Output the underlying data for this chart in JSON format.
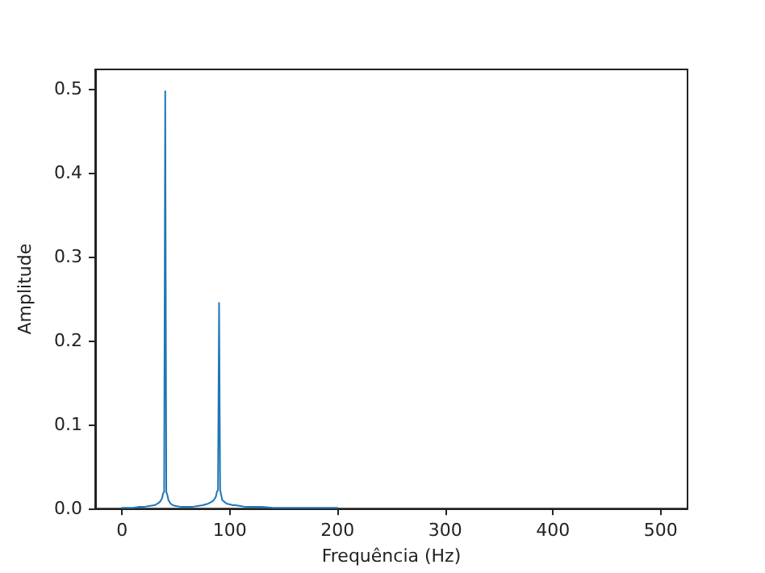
{
  "chart_data": {
    "type": "line",
    "xlabel": "Frequência (Hz)",
    "ylabel": "Amplitude",
    "x": [
      0,
      5,
      10,
      15,
      20,
      25,
      30,
      33,
      35,
      37,
      38,
      39,
      40,
      41,
      42,
      43,
      45,
      47,
      50,
      55,
      60,
      65,
      70,
      75,
      80,
      83,
      85,
      87,
      88,
      89,
      90,
      91,
      92,
      93,
      95,
      97,
      100,
      103,
      105,
      110,
      115,
      120,
      130,
      140,
      150,
      160,
      170,
      180,
      190,
      200
    ],
    "series": [
      {
        "color": "#1f77b4",
        "values": [
          0.001,
          0.001,
          0.001,
          0.002,
          0.002,
          0.003,
          0.004,
          0.006,
          0.008,
          0.012,
          0.018,
          0.02,
          0.497,
          0.02,
          0.016,
          0.01,
          0.006,
          0.004,
          0.003,
          0.002,
          0.002,
          0.002,
          0.003,
          0.004,
          0.006,
          0.008,
          0.01,
          0.014,
          0.02,
          0.022,
          0.245,
          0.022,
          0.016,
          0.01,
          0.008,
          0.006,
          0.005,
          0.004,
          0.004,
          0.003,
          0.002,
          0.002,
          0.002,
          0.001,
          0.001,
          0.001,
          0.001,
          0.001,
          0.001,
          0.001
        ]
      }
    ],
    "xlim": [
      -25,
      525
    ],
    "xticks": [
      0,
      100,
      200,
      300,
      400,
      500
    ],
    "ylim": [
      0,
      0.523
    ],
    "yticks": [
      {
        "value": 0,
        "label": "0.0"
      },
      {
        "value": 0.1,
        "label": "0.1"
      },
      {
        "value": 0.2,
        "label": "0.2"
      },
      {
        "value": 0.3,
        "label": "0.3"
      },
      {
        "value": 0.4,
        "label": "0.4"
      },
      {
        "value": 0.5,
        "label": "0.5"
      }
    ],
    "grid": false,
    "marker": "none",
    "line_style": "solid"
  }
}
